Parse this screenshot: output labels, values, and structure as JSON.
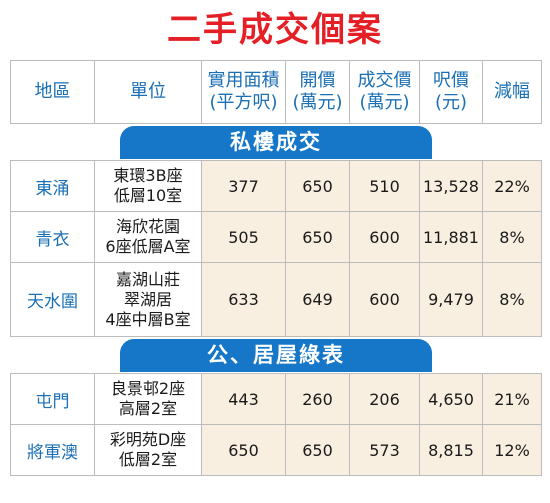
{
  "title": "二手成交個案",
  "headers": {
    "district": "地區",
    "unit": "單位",
    "area": [
      "實用面積",
      "(平方呎)"
    ],
    "asking": [
      "開價",
      "(萬元)"
    ],
    "deal": [
      "成交價",
      "(萬元)"
    ],
    "psf": [
      "呎價",
      "(元)"
    ],
    "cut": "減幅"
  },
  "sections": [
    {
      "label": "私樓成交",
      "rows": [
        {
          "district": "東涌",
          "unit": [
            "東環3B座",
            "低層10室"
          ],
          "area": "377",
          "asking": "650",
          "deal": "510",
          "psf": "13,528",
          "cut": "22%"
        },
        {
          "district": "青衣",
          "unit": [
            "海欣花園",
            "6座低層A室"
          ],
          "area": "505",
          "asking": "650",
          "deal": "600",
          "psf": "11,881",
          "cut": "8%"
        },
        {
          "district": "天水圍",
          "unit": [
            "嘉湖山莊",
            "翠湖居",
            "4座中層B室"
          ],
          "area": "633",
          "asking": "649",
          "deal": "600",
          "psf": "9,479",
          "cut": "8%"
        }
      ]
    },
    {
      "label": "公、居屋綠表",
      "rows": [
        {
          "district": "屯門",
          "unit": [
            "良景邨2座",
            "高層2室"
          ],
          "area": "443",
          "asking": "260",
          "deal": "206",
          "psf": "4,650",
          "cut": "21%"
        },
        {
          "district": "將軍澳",
          "unit": [
            "彩明苑D座",
            "低層2室"
          ],
          "area": "650",
          "asking": "650",
          "deal": "573",
          "psf": "8,815",
          "cut": "12%"
        }
      ]
    }
  ]
}
